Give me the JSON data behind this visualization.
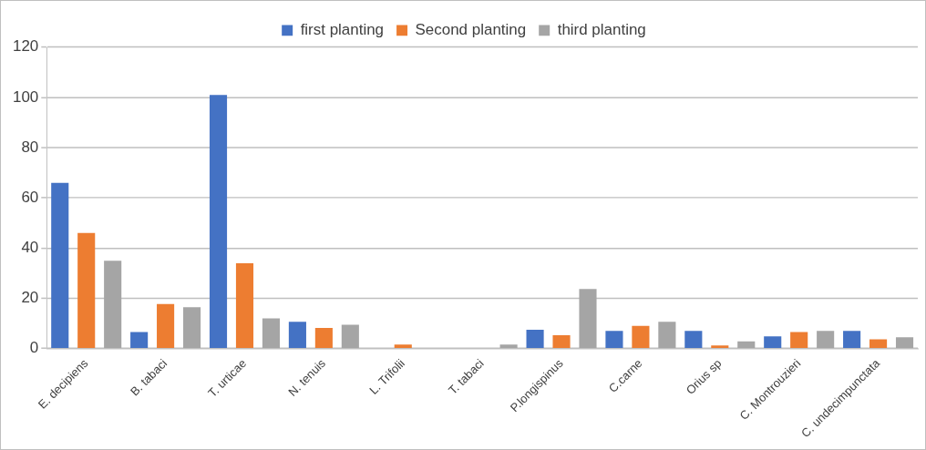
{
  "chart_data": {
    "type": "bar",
    "categories": [
      "E. decipiens",
      "B. tabaci",
      "T. urticae",
      "N. tenuis",
      "L. Trifolii",
      "T. tabaci",
      "P.longispinus",
      "C.carne",
      "Orius sp",
      "C. Montrouzieri",
      "C. undecimpunctata"
    ],
    "series": [
      {
        "name": "first planting",
        "color": "#4472c4",
        "values": [
          66,
          6.6,
          101,
          10.7,
          null,
          null,
          7.5,
          7,
          7,
          4.9,
          7
        ]
      },
      {
        "name": "Second planting",
        "color": "#ed7d31",
        "values": [
          46,
          17.7,
          34,
          8.2,
          1.6,
          null,
          5.3,
          9,
          1.2,
          6.6,
          3.7
        ]
      },
      {
        "name": "third planting",
        "color": "#a5a5a5",
        "values": [
          35,
          16.5,
          12,
          9.5,
          null,
          1.6,
          23.7,
          10.7,
          2.9,
          7,
          4.5
        ]
      }
    ],
    "ylim": [
      0,
      120
    ],
    "yticks": [
      0,
      20,
      40,
      60,
      80,
      100,
      120
    ],
    "grid": "y",
    "legend": "top"
  }
}
